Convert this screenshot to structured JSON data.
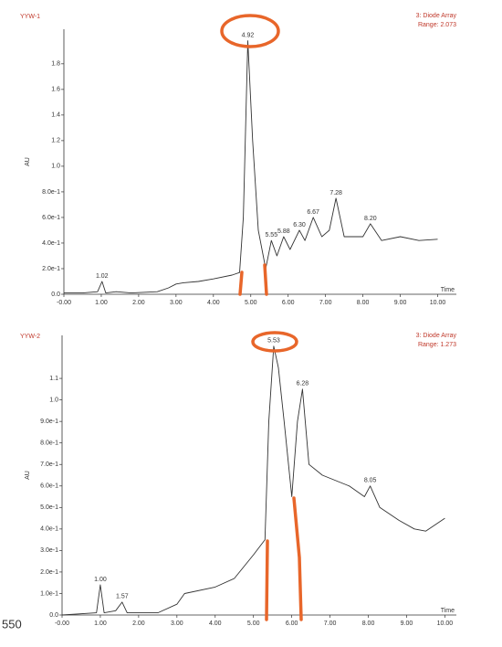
{
  "chart_data": [
    {
      "type": "line",
      "title": "YYW-1",
      "subtitle": "3: Diode Array",
      "range_label": "Range: 2.073",
      "y_label": "AU",
      "x_label": "Time",
      "xlim": [
        0,
        10.5
      ],
      "ylim": [
        0,
        2.07
      ],
      "xticks": [
        {
          "value": 0,
          "label": "-0.00"
        },
        {
          "value": 1,
          "label": "1.00"
        },
        {
          "value": 2,
          "label": "2.00"
        },
        {
          "value": 3,
          "label": "3.00"
        },
        {
          "value": 4,
          "label": "4.00"
        },
        {
          "value": 5,
          "label": "5.00"
        },
        {
          "value": 6,
          "label": "6.00"
        },
        {
          "value": 7,
          "label": "7.00"
        },
        {
          "value": 8,
          "label": "8.00"
        },
        {
          "value": 9,
          "label": "9.00"
        },
        {
          "value": 10,
          "label": "10.00"
        }
      ],
      "yticks": [
        {
          "value": 0,
          "label": "0.0"
        },
        {
          "value": 0.2,
          "label": "2.0e-1"
        },
        {
          "value": 0.4,
          "label": "4.0e-1"
        },
        {
          "value": 0.6,
          "label": "6.0e-1"
        },
        {
          "value": 0.8,
          "label": "8.0e-1"
        },
        {
          "value": 1.0,
          "label": "1.0"
        },
        1.2,
        1.4,
        1.6,
        1.8
      ],
      "series": [
        {
          "color": "#333333",
          "x": [
            0,
            0.5,
            0.9,
            1.02,
            1.12,
            1.4,
            1.8,
            2.5,
            2.8,
            3.0,
            3.2,
            3.6,
            4.0,
            4.5,
            4.7,
            4.8,
            4.92,
            5.05,
            5.2,
            5.4,
            5.55,
            5.7,
            5.88,
            6.05,
            6.3,
            6.45,
            6.67,
            6.9,
            7.1,
            7.28,
            7.5,
            8.0,
            8.2,
            8.5,
            9.0,
            9.5,
            10.0
          ],
          "values": [
            0.01,
            0.01,
            0.02,
            0.1,
            0.01,
            0.02,
            0.01,
            0.02,
            0.05,
            0.08,
            0.09,
            0.1,
            0.12,
            0.15,
            0.17,
            0.6,
            1.98,
            1.2,
            0.5,
            0.2,
            0.42,
            0.3,
            0.45,
            0.35,
            0.5,
            0.42,
            0.6,
            0.45,
            0.5,
            0.75,
            0.45,
            0.45,
            0.55,
            0.42,
            0.45,
            0.42,
            0.43
          ]
        }
      ],
      "peak_labels": [
        {
          "label": "1.02",
          "x": 1.02,
          "y": 0.1
        },
        {
          "label": "4.92",
          "x": 4.92,
          "y": 1.98
        },
        {
          "label": "5.55",
          "x": 5.55,
          "y": 0.42
        },
        {
          "label": "5.88",
          "x": 5.88,
          "y": 0.45
        },
        {
          "label": "6.30",
          "x": 6.3,
          "y": 0.5
        },
        {
          "label": "6.67",
          "x": 6.67,
          "y": 0.6
        },
        {
          "label": "7.28",
          "x": 7.28,
          "y": 0.75
        },
        {
          "label": "8.20",
          "x": 8.2,
          "y": 0.55
        }
      ]
    },
    {
      "type": "line",
      "title": "YYW-2",
      "subtitle": "3: Diode Array",
      "range_label": "Range: 1.273",
      "y_label": "AU",
      "x_label": "Time",
      "xlim": [
        0,
        10.3
      ],
      "ylim": [
        0,
        1.3
      ],
      "xticks": [
        {
          "value": 0,
          "label": "-0.00"
        },
        {
          "value": 1,
          "label": "1.00"
        },
        {
          "value": 2,
          "label": "2.00"
        },
        {
          "value": 3,
          "label": "3.00"
        },
        {
          "value": 4,
          "label": "4.00"
        },
        {
          "value": 5,
          "label": "5.00"
        },
        {
          "value": 6,
          "label": "6.00"
        },
        {
          "value": 7,
          "label": "7.00"
        },
        {
          "value": 8,
          "label": "8.00"
        },
        {
          "value": 9,
          "label": "9.00"
        },
        {
          "value": 10,
          "label": "10.00"
        }
      ],
      "yticks": [
        {
          "value": 0,
          "label": "0.0"
        },
        {
          "value": 0.1,
          "label": "1.0e-1"
        },
        {
          "value": 0.2,
          "label": "2.0e-1"
        },
        {
          "value": 0.3,
          "label": "3.0e-1"
        },
        {
          "value": 0.4,
          "label": "4.0e-1"
        },
        {
          "value": 0.5,
          "label": "5.0e-1"
        },
        {
          "value": 0.6,
          "label": "6.0e-1"
        },
        {
          "value": 0.7,
          "label": "7.0e-1"
        },
        {
          "value": 0.8,
          "label": "8.0e-1"
        },
        {
          "value": 0.9,
          "label": "9.0e-1"
        },
        {
          "value": 1.0,
          "label": "1.0"
        },
        1.1
      ],
      "series": [
        {
          "color": "#333333",
          "x": [
            0,
            0.9,
            1.0,
            1.1,
            1.4,
            1.57,
            1.7,
            2.5,
            3.0,
            3.2,
            4.0,
            4.5,
            5.0,
            5.3,
            5.4,
            5.53,
            5.65,
            5.8,
            6.0,
            6.15,
            6.28,
            6.45,
            6.8,
            7.5,
            7.9,
            8.05,
            8.3,
            8.8,
            9.2,
            9.5,
            10.0
          ],
          "values": [
            0.0,
            0.01,
            0.14,
            0.01,
            0.02,
            0.06,
            0.01,
            0.01,
            0.05,
            0.1,
            0.13,
            0.17,
            0.28,
            0.35,
            0.9,
            1.25,
            1.15,
            0.9,
            0.55,
            0.9,
            1.05,
            0.7,
            0.65,
            0.6,
            0.55,
            0.6,
            0.5,
            0.44,
            0.4,
            0.39,
            0.45
          ]
        }
      ],
      "peak_labels": [
        {
          "label": "1.00",
          "x": 1.0,
          "y": 0.14
        },
        {
          "label": "1.57",
          "x": 1.57,
          "y": 0.06
        },
        {
          "label": "5.53",
          "x": 5.53,
          "y": 1.25
        },
        {
          "label": "6.28",
          "x": 6.28,
          "y": 1.05
        },
        {
          "label": "8.05",
          "x": 8.05,
          "y": 0.6
        }
      ]
    }
  ],
  "page_label": "550"
}
